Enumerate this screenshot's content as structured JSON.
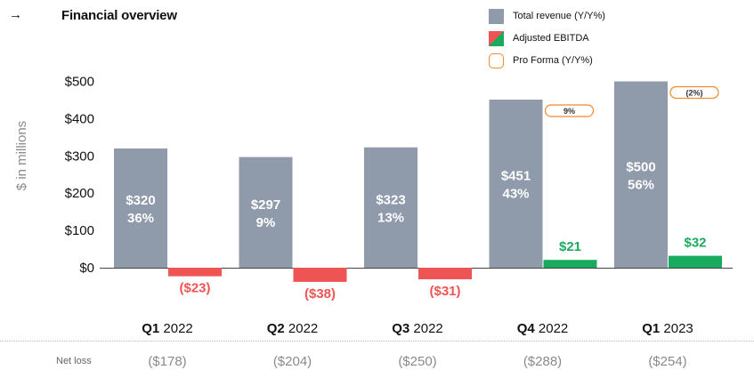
{
  "title": "Financial overview",
  "nav": {
    "arrow": "→"
  },
  "legend": [
    {
      "label": "Total revenue (Y/Y%)",
      "type": "revenue"
    },
    {
      "label": "Adjusted EBITDA",
      "type": "ebitda"
    },
    {
      "label": "Pro Forma (Y/Y%)",
      "type": "proforma"
    }
  ],
  "colors": {
    "revenue": "#8f9aab",
    "ebitda_negative": "#ef5454",
    "ebitda_positive": "#1aaa5e",
    "proforma": "#f08a2c",
    "axis": "#8c8c8c"
  },
  "net_loss": {
    "label": "Net loss",
    "values": [
      "($178)",
      "($204)",
      "($250)",
      "($288)",
      "($254)"
    ]
  },
  "chart_data": {
    "type": "bar",
    "ylabel": "$ in millions",
    "ylim": [
      0,
      500
    ],
    "yticks": [
      "$500",
      "$400",
      "$300",
      "$200",
      "$100",
      "$0"
    ],
    "ytick_values": [
      500,
      400,
      300,
      200,
      100,
      0
    ],
    "categories": [
      {
        "q": "Q1",
        "year": "2022"
      },
      {
        "q": "Q2",
        "year": "2022"
      },
      {
        "q": "Q3",
        "year": "2022"
      },
      {
        "q": "Q4",
        "year": "2022"
      },
      {
        "q": "Q1",
        "year": "2023"
      }
    ],
    "series": [
      {
        "name": "Total revenue (Y/Y%)",
        "values": [
          320,
          297,
          323,
          451,
          500
        ],
        "labels": [
          "$320",
          "$297",
          "$323",
          "$451",
          "$500"
        ],
        "growth": [
          "36%",
          "9%",
          "13%",
          "43%",
          "56%"
        ]
      },
      {
        "name": "Adjusted EBITDA",
        "values": [
          -23,
          -38,
          -31,
          21,
          32
        ],
        "labels": [
          "($23)",
          "($38)",
          "($31)",
          "$21",
          "$32"
        ]
      },
      {
        "name": "Pro Forma (Y/Y%)",
        "values": [
          null,
          null,
          null,
          9,
          -2
        ],
        "labels": [
          "",
          "",
          "",
          "9%",
          "(2%)"
        ]
      }
    ]
  }
}
